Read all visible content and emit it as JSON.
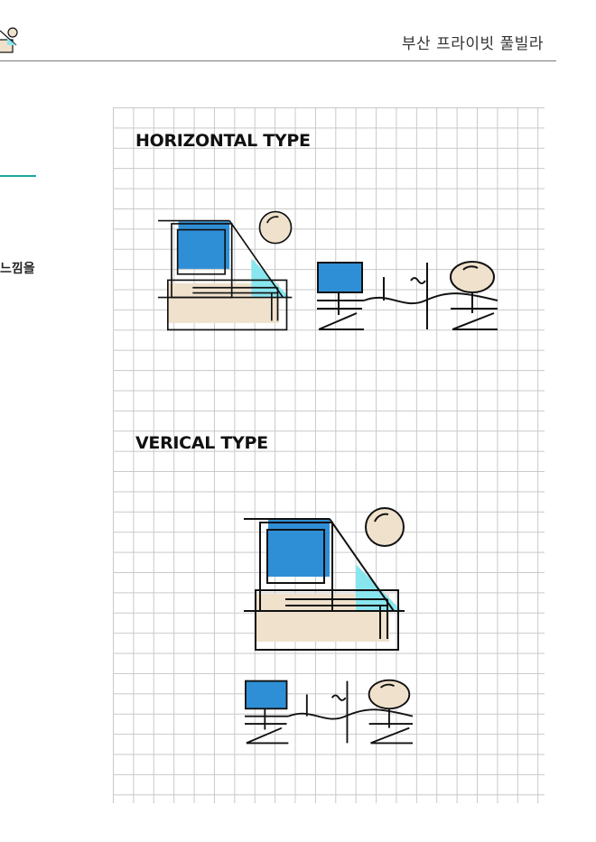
{
  "header": {
    "title": "부산 프라이빗 풀빌라"
  },
  "sidebar": {
    "fragment_text": "느낌을"
  },
  "sections": [
    {
      "heading": "HORIZONTAL TYPE"
    },
    {
      "heading": "VERICAL TYPE"
    }
  ],
  "colors": {
    "accent": "#1aa8a0",
    "logo_blue": "#2f8fd6",
    "logo_cyan": "#8ae6ee",
    "logo_beige": "#efe1cc",
    "line": "#111111"
  },
  "icons": [
    "logo-mark-icon"
  ]
}
